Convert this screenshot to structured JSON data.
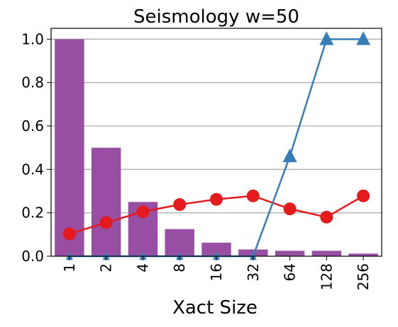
{
  "chart_data": {
    "type": "bar",
    "title": "Seismology w=50",
    "xlabel": "Xact Size",
    "ylabel": "",
    "categories": [
      "1",
      "2",
      "4",
      "8",
      "16",
      "32",
      "64",
      "128",
      "256"
    ],
    "ylim": [
      0,
      1.05
    ],
    "yticks": [
      "0.0",
      "0.2",
      "0.4",
      "0.6",
      "0.8",
      "1.0"
    ],
    "grid": "horizontal",
    "series": [
      {
        "mark": "bar",
        "color": "#984ea3",
        "values": [
          1.0,
          0.5,
          0.25,
          0.125,
          0.0625,
          0.031,
          0.025,
          0.025,
          0.012
        ]
      },
      {
        "mark": "line-circle",
        "color": "#e41a1c",
        "values": [
          0.103,
          0.155,
          0.205,
          0.238,
          0.262,
          0.278,
          0.218,
          0.18,
          0.278
        ]
      },
      {
        "mark": "line-triangle",
        "color": "#377eb8",
        "values": [
          0.0,
          0.0,
          0.0,
          0.0,
          0.0,
          0.0,
          0.46,
          1.0,
          1.0
        ]
      }
    ]
  }
}
